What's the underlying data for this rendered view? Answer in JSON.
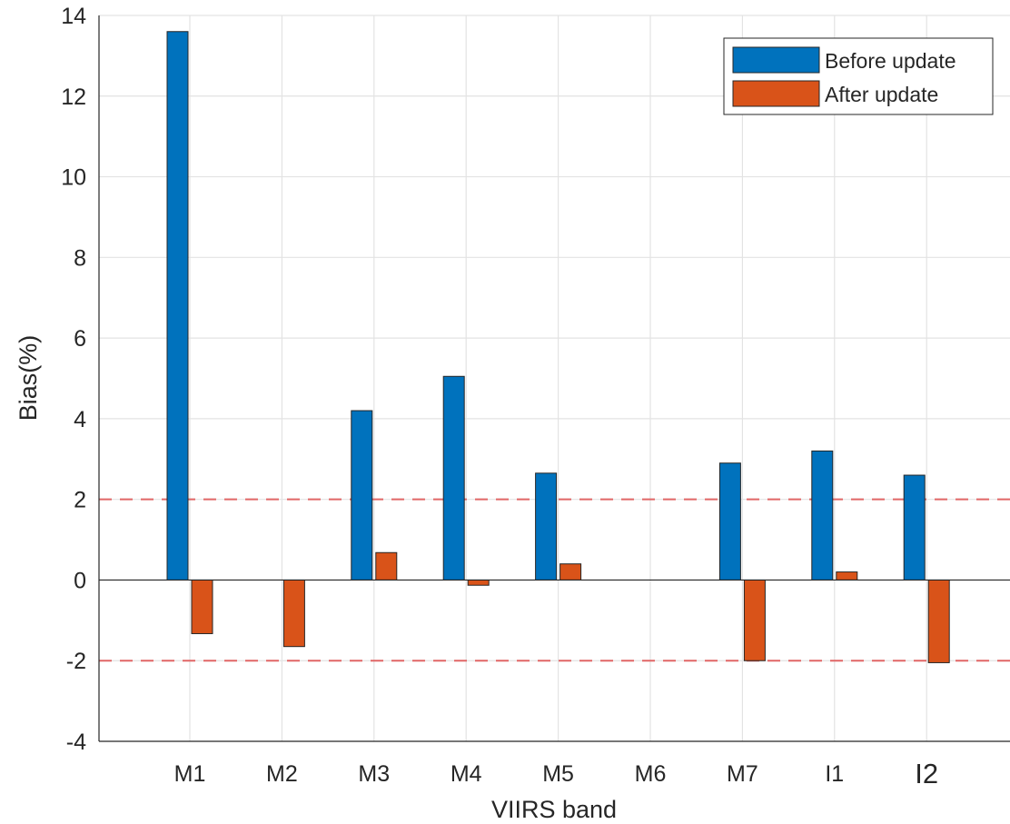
{
  "chart_data": {
    "type": "bar",
    "title": "",
    "xlabel": "VIIRS band",
    "ylabel": "Bias(%)",
    "categories": [
      "M1",
      "M2",
      "M3",
      "M4",
      "M5",
      "M6",
      "M7",
      "I1",
      "I2"
    ],
    "series": [
      {
        "name": "Before update",
        "color": "#0072BD",
        "values": [
          13.6,
          null,
          4.2,
          5.05,
          2.65,
          null,
          2.9,
          3.2,
          2.6
        ]
      },
      {
        "name": "After update",
        "color": "#D95319",
        "values": [
          -1.33,
          -1.65,
          0.68,
          -0.13,
          0.4,
          null,
          -2.0,
          0.2,
          -2.05
        ]
      }
    ],
    "ylim": [
      -4,
      14
    ],
    "yticks": [
      -4,
      -2,
      0,
      2,
      4,
      6,
      8,
      10,
      12,
      14
    ],
    "grid": true,
    "reference_lines": [
      2,
      -2
    ],
    "reference_line_color": "#E06666",
    "legend_position": "top-right"
  }
}
